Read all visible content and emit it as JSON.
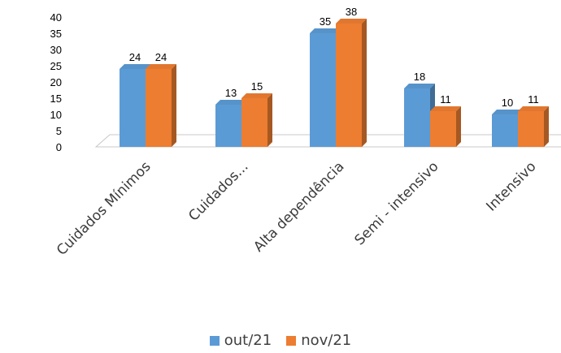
{
  "chart_data": {
    "type": "bar",
    "categories": [
      "Cuidados Mínimos",
      "Cuidados...",
      "Alta dependência",
      "Semi - intensivo",
      "Intensivo"
    ],
    "series": [
      {
        "name": "out/21",
        "values": [
          24,
          13,
          35,
          18,
          10
        ],
        "color": "#5b9bd5"
      },
      {
        "name": "nov/21",
        "values": [
          24,
          15,
          38,
          11,
          11
        ],
        "color": "#ed7d31"
      }
    ],
    "title": "",
    "xlabel": "",
    "ylabel": "",
    "ylim": [
      0,
      40
    ],
    "yticks": [
      "0",
      "5",
      "10",
      "15",
      "20",
      "25",
      "30",
      "35",
      "40"
    ],
    "grid": false,
    "legend_position": "bottom",
    "style": "3d-clustered-column"
  }
}
